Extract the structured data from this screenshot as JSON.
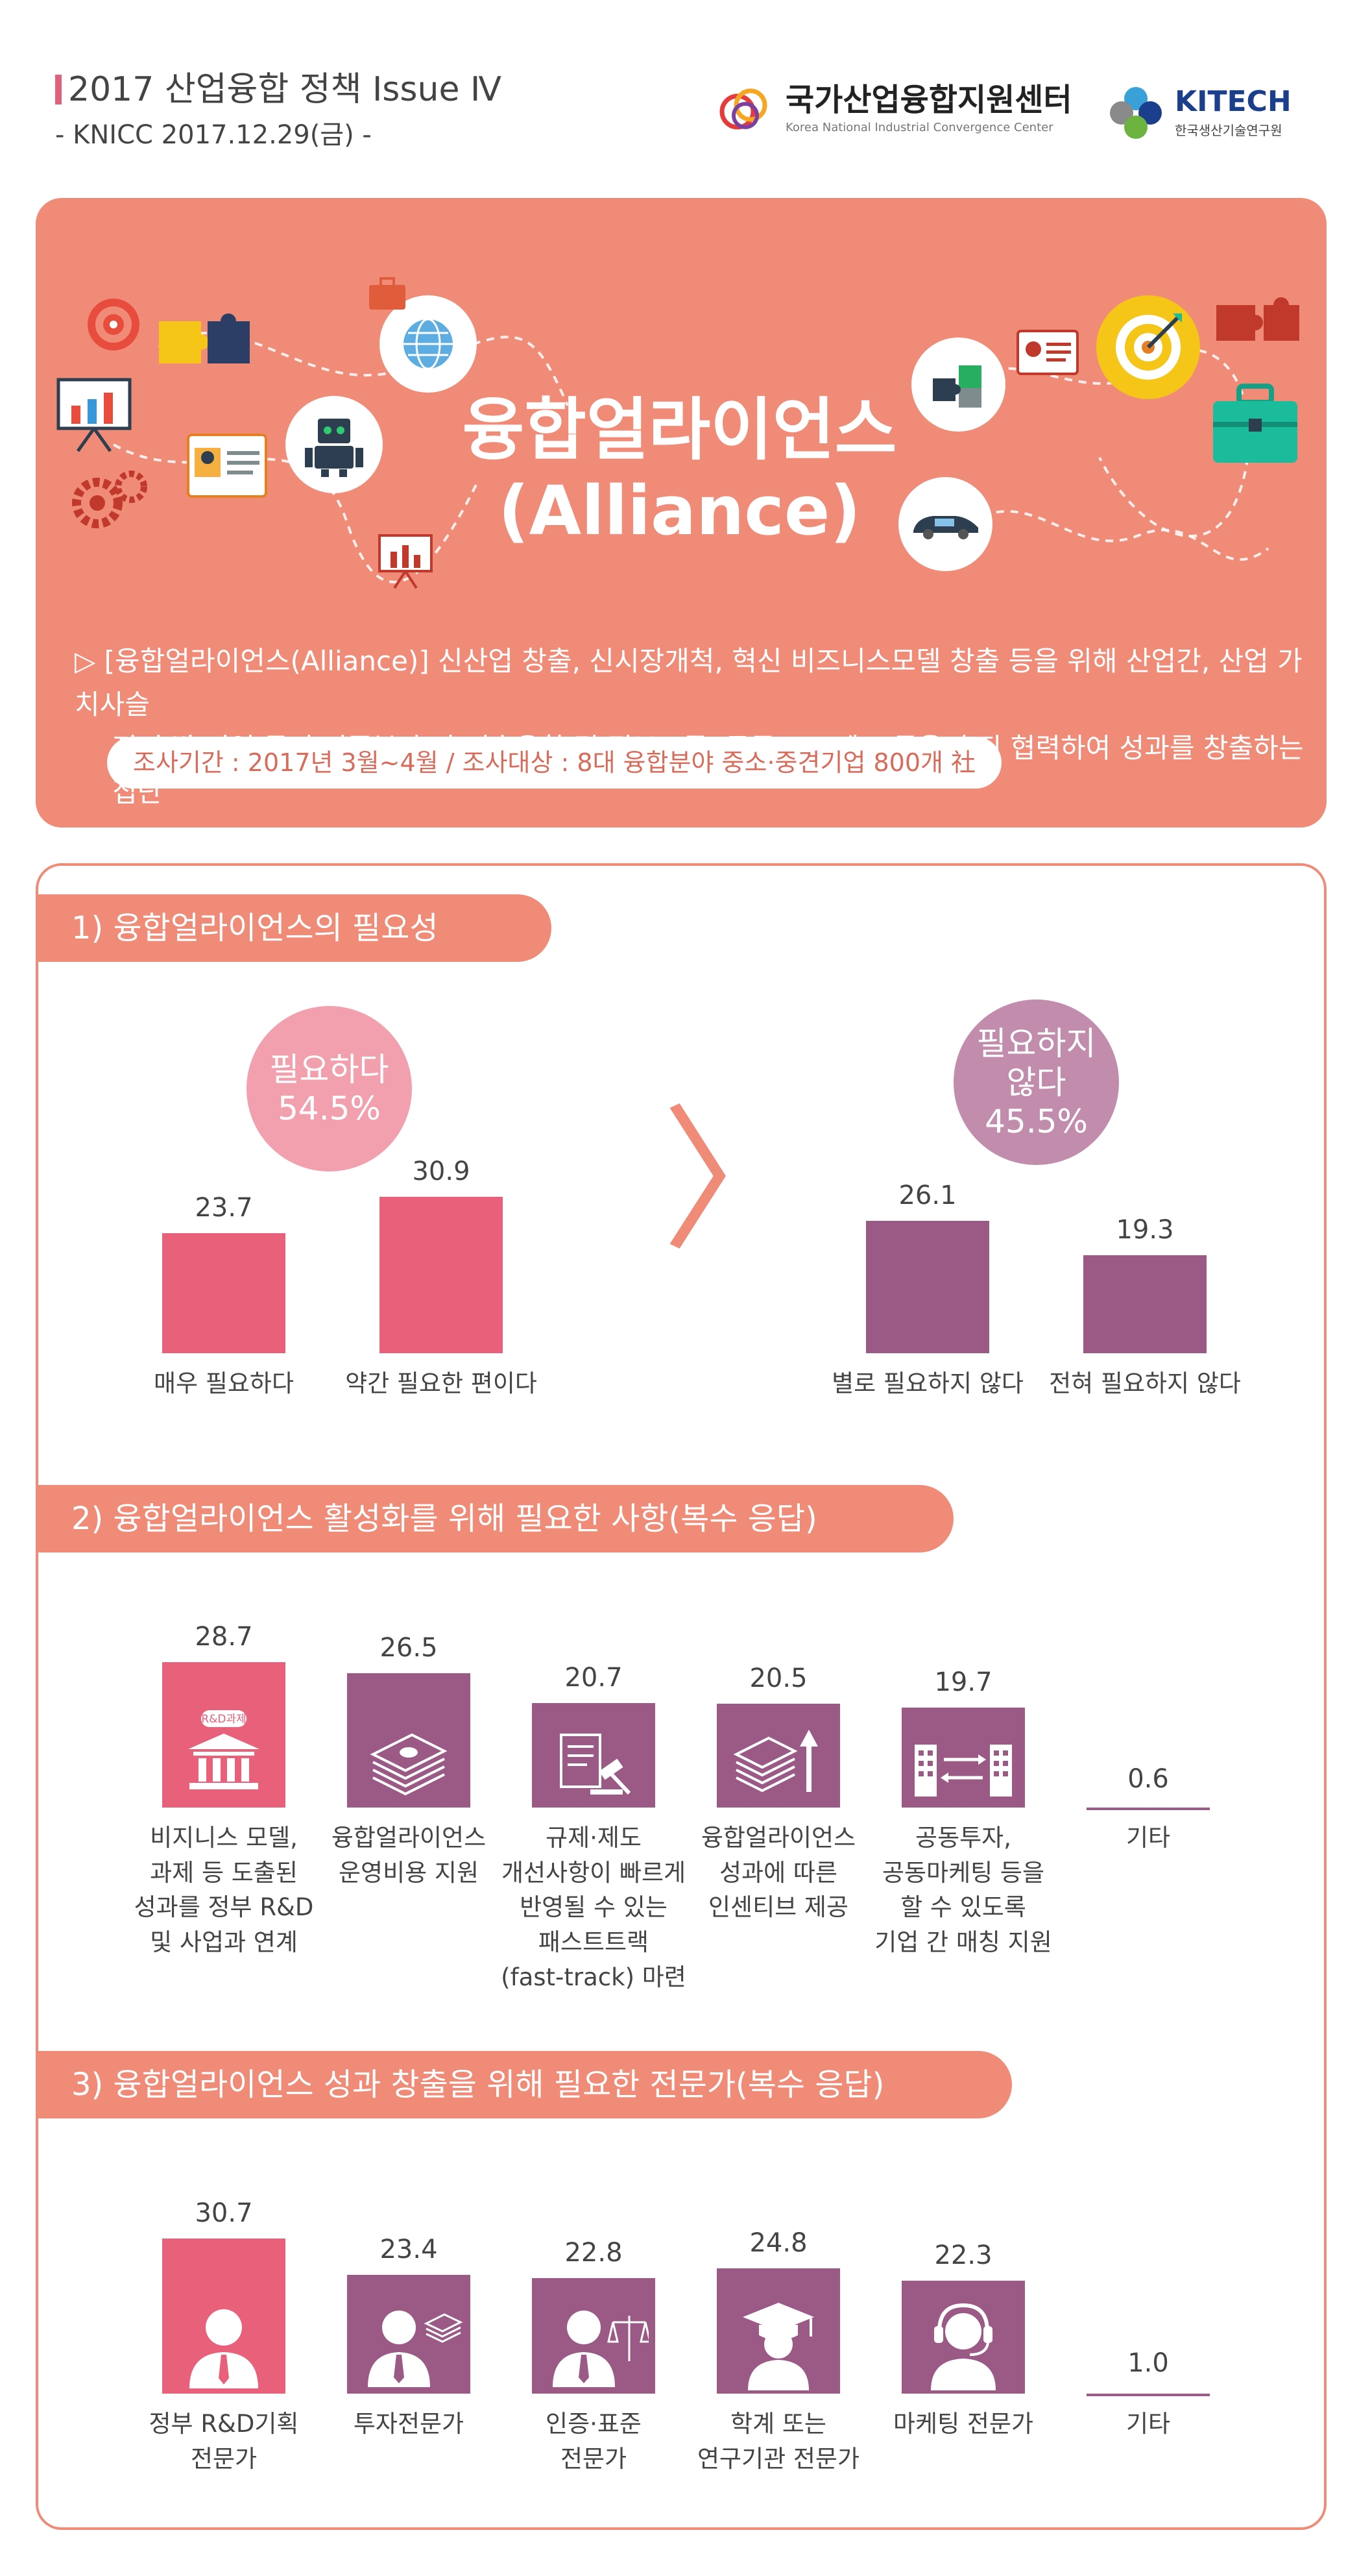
{
  "header": {
    "title": "2017 산업융합 정책 Issue Ⅳ",
    "subtitle": "- KNICC 2017.12.29(금) -",
    "logo1_ko": "국가산업융합지원센터",
    "logo1_en": "Korea National Industrial Convergence Center",
    "logo2_en": "KITECH",
    "logo2_ko": "한국생산기술연구원"
  },
  "hero": {
    "title_line1": "융합얼라이언스",
    "title_line2": "(Alliance)",
    "desc_line1": "▷ [융합얼라이언스(Alliance)] 신산업 창출, 신시장개척, 혁신 비즈니스모델 창출 등을 위해 산업간, 산업 가치사슬",
    "desc_line2": "전·후방 기업 등이 이종분야 간 기술융합 및 정보교류, 공동 프로젝트 등을 추진 협력하여 성과를 창출하는 집단",
    "period": "조사기간 : 2017년 3월~4월 / 조사대상 : 8대 융합분야 중소·중견기업 800개 社"
  },
  "colors": {
    "coral": "#f08b78",
    "pink": "#e8607a",
    "purple": "#9b5a86",
    "light_pink": "#f3a0ae",
    "light_purple": "#c28dad"
  },
  "chart_data": [
    {
      "type": "bar",
      "title": "1) 융합얼라이언스의 필요성",
      "groups": [
        {
          "label": "필요하다",
          "total": "54.5%",
          "categories": [
            "매우 필요하다",
            "약간 필요한 편이다"
          ],
          "values": [
            23.7,
            30.9
          ]
        },
        {
          "label": "필요하지 않다",
          "total": "45.5%",
          "categories": [
            "별로 필요하지 않다",
            "전혀 필요하지 않다"
          ],
          "values": [
            26.1,
            19.3
          ]
        }
      ]
    },
    {
      "type": "bar",
      "title": "2) 융합얼라이언스 활성화를 위해 필요한 사항(복수 응답)",
      "categories": [
        "비지니스 모델,\n과제 등 도출된\n성과를 정부 R&D\n및 사업과 연계",
        "융합얼라이언스\n운영비용 지원",
        "규제·제도\n개선사항이 빠르게\n반영될 수 있는\n패스트트랙\n(fast-track) 마련",
        "융합얼라이언스\n성과에 따른\n인센티브 제공",
        "공동투자,\n공동마케팅 등을\n할 수 있도록\n기업 간 매칭 지원",
        "기타"
      ],
      "values": [
        28.7,
        26.5,
        20.7,
        20.5,
        19.7,
        0.6
      ],
      "icon_badge": "R&D과제"
    },
    {
      "type": "bar",
      "title": "3) 융합얼라이언스 성과 창출을 위해 필요한 전문가(복수 응답)",
      "categories": [
        "정부 R&D기획\n전문가",
        "투자전문가",
        "인증·표준\n전문가",
        "학계 또는\n연구기관 전문가",
        "마케팅 전문가",
        "기타"
      ],
      "values": [
        30.7,
        23.4,
        22.8,
        24.8,
        22.3,
        1.0
      ]
    }
  ]
}
